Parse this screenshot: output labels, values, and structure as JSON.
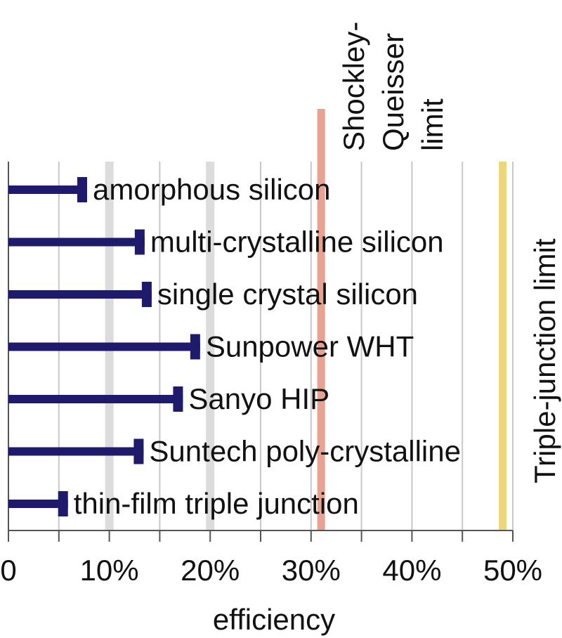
{
  "chart_data": {
    "type": "bar",
    "orientation": "horizontal",
    "categories": [
      "amorphous silicon",
      "multi-crystalline silicon",
      "single crystal silicon",
      "Sunpower WHT",
      "Sanyo HIP",
      "Suntech poly-crystalline",
      "thin-film triple junction"
    ],
    "values": [
      7.8,
      13.5,
      14.2,
      19.0,
      17.3,
      13.4,
      5.9
    ],
    "xlabel": "efficiency",
    "xlim": [
      0,
      50
    ],
    "x_ticks": [
      {
        "value": 0,
        "label": "0"
      },
      {
        "value": 10,
        "label": "10%"
      },
      {
        "value": 20,
        "label": "20%"
      },
      {
        "value": 30,
        "label": "30%"
      },
      {
        "value": 40,
        "label": "40%"
      },
      {
        "value": 50,
        "label": "50%"
      }
    ],
    "grid": true,
    "limits": [
      {
        "label_lines": [
          "Shockley-",
          "Queisser",
          "limit"
        ],
        "value": 31,
        "color": "#e8a291"
      },
      {
        "label_lines": [
          "Triple-junction limit"
        ],
        "value": 49,
        "color": "#ecd679"
      }
    ],
    "colors": {
      "bar": "#1f1a6b",
      "grid": "#c8c8c8",
      "grid_major": "#dcdcdc",
      "axis": "#555555"
    }
  }
}
